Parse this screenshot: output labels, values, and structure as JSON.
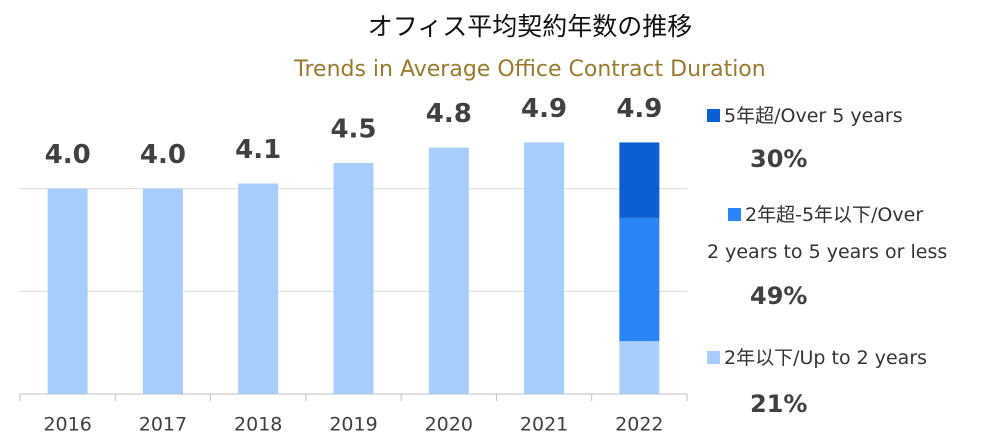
{
  "chart_data": {
    "type": "bar",
    "title": "オフィス平均契約年数の推移",
    "subtitle": "Trends in Average Office Contract Duration",
    "categories": [
      "2016",
      "2017",
      "2018",
      "2019",
      "2020",
      "2021",
      "2022"
    ],
    "values": [
      4.0,
      4.0,
      4.1,
      4.5,
      4.8,
      4.9,
      4.9
    ],
    "value_labels": [
      "4.0",
      "4.0",
      "4.1",
      "4.5",
      "4.8",
      "4.9",
      "4.9"
    ],
    "color": "#a6cdfb",
    "ylim": [
      0,
      6
    ],
    "yticks": [
      0,
      2,
      4
    ],
    "grid": true,
    "breakdown": {
      "category": "2022",
      "series": [
        {
          "name": "5年超/Over 5 years",
          "color": "#0a60d2",
          "values": [
            30
          ],
          "value_labels": [
            "30%"
          ]
        },
        {
          "name": "2年超-5年以下/Over\n2 years to 5 years or less",
          "color": "#2a86f7",
          "values": [
            49
          ],
          "value_labels": [
            "49%"
          ]
        },
        {
          "name": "2年以下/Up to 2 years",
          "color": "#a6cdfb",
          "values": [
            21
          ],
          "value_labels": [
            "21%"
          ]
        }
      ]
    }
  }
}
